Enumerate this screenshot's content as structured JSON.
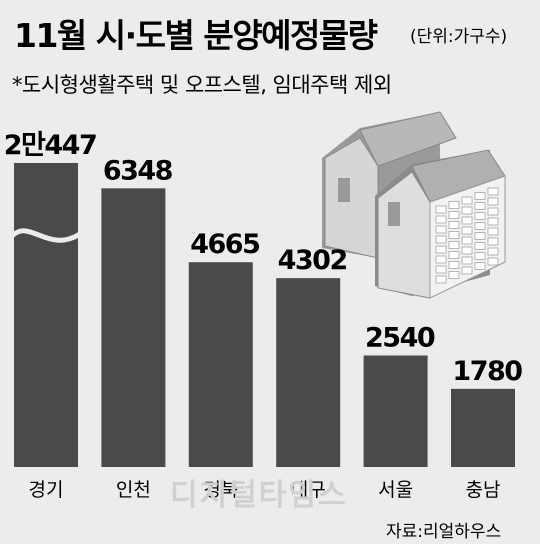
{
  "title": "11월 시·도별 분양예정물량",
  "unit": "(단위:가구수)",
  "note": "*도시형생활주택 및 오프스텔, 임대주택 제외",
  "source": "자료:리얼하우스",
  "watermark": "디지털타임스",
  "chart_data": {
    "type": "bar",
    "title": "11월 시·도별 분양예정물량",
    "ylabel": "",
    "xlabel": "",
    "unit": "가구수",
    "axis_break": true,
    "categories": [
      "경기",
      "인천",
      "경북",
      "대구",
      "서울",
      "충남"
    ],
    "values": [
      20447,
      6348,
      4665,
      4302,
      2540,
      1780
    ],
    "value_labels": [
      "2만447",
      "6348",
      "4665",
      "4302",
      "2540",
      "1780"
    ],
    "colors": {
      "bar": "#4a4a4a",
      "background": "#ececec"
    }
  }
}
